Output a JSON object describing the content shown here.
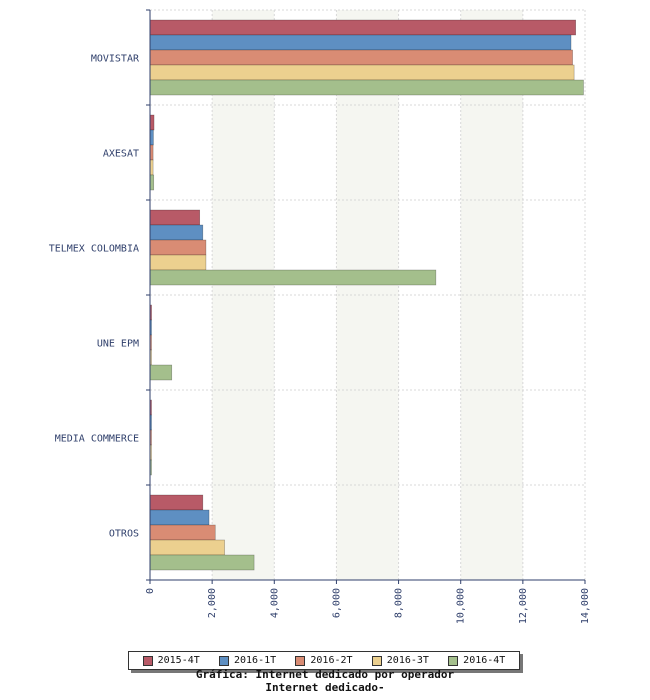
{
  "chart_data": {
    "type": "bar",
    "orientation": "horizontal",
    "categories": [
      "MOVISTAR",
      "AXESAT",
      "TELMEX COLOMBIA",
      "UNE EPM",
      "MEDIA COMMERCE",
      "OTROS"
    ],
    "series": [
      {
        "name": "2015-4T",
        "color": "#b85a67",
        "values": [
          13700,
          130,
          1600,
          50,
          10,
          1700
        ]
      },
      {
        "name": "2016-1T",
        "color": "#5e8fc2",
        "values": [
          13550,
          110,
          1700,
          40,
          10,
          1900
        ]
      },
      {
        "name": "2016-2T",
        "color": "#d98c74",
        "values": [
          13600,
          100,
          1800,
          35,
          10,
          2100
        ]
      },
      {
        "name": "2016-3T",
        "color": "#ecd08f",
        "values": [
          13650,
          100,
          1800,
          40,
          10,
          2400
        ]
      },
      {
        "name": "2016-4T",
        "color": "#a4bf8c",
        "values": [
          13950,
          120,
          9200,
          700,
          20,
          3350
        ]
      }
    ],
    "xlim": [
      0,
      14000
    ],
    "ticks": [
      "0",
      "2,000",
      "4,000",
      "6,000",
      "8,000",
      "10,000",
      "12,000",
      "14,000"
    ],
    "grid": true,
    "legend_position": "bottom"
  },
  "captions": {
    "line1": "Gráfica: Internet dedicado por operador",
    "line2": "Internet dedicado-"
  }
}
